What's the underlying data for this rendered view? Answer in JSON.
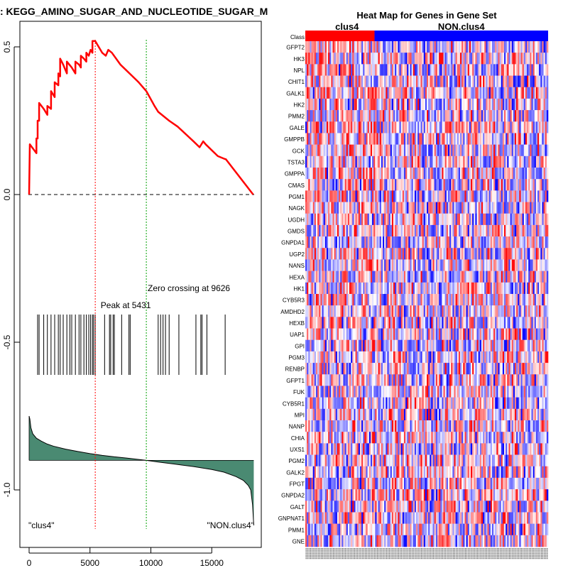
{
  "chart_data": [
    {
      "type": "line",
      "title": "Enrichment plot: KEGG_AMINO_SUGAR_AND_NUCLEOTIDE_SUGAR_METABOLISM",
      "title_visible": ": KEGG_AMINO_SUGAR_AND_NUCLEOTIDE_SUGAR_M",
      "xlabel": "",
      "ylabel": "",
      "xlim": [
        0,
        18500
      ],
      "ylim": [
        -1.15,
        0.6
      ],
      "x_ticks": [
        0,
        5000,
        10000,
        15000
      ],
      "x_tick_labels": [
        "0",
        "5000",
        "10000",
        "15000"
      ],
      "y_ticks": [
        0.5,
        0.0,
        -0.5,
        -1.0
      ],
      "y_tick_labels": [
        "0.5",
        "0.0",
        "-0.5",
        "-1.0"
      ],
      "peak": {
        "x": 5431,
        "label": "Peak at 5431"
      },
      "zero_crossing": {
        "x": 9626,
        "label": "Zero crossing at 9626"
      },
      "left_class_label": "\"clus4\"",
      "right_class_label": "\"NON.clus4\"",
      "running_es": {
        "x": [
          0,
          60,
          60,
          600,
          600,
          700,
          700,
          820,
          820,
          1200,
          1500,
          1500,
          1800,
          1800,
          2100,
          2100,
          2400,
          2400,
          2550,
          2550,
          2800,
          3100,
          3100,
          3500,
          3800,
          3800,
          4100,
          4250,
          4250,
          4500,
          4700,
          4700,
          4900,
          5050,
          5200,
          5200,
          5431,
          6000,
          6300,
          6500,
          6800,
          7500,
          8000,
          8500,
          9000,
          9626,
          10300,
          10600,
          11500,
          12200,
          13500,
          14000,
          14300,
          14500,
          15500,
          16100,
          16150,
          18400
        ],
        "y": [
          0.0,
          0.17,
          0.17,
          0.14,
          0.19,
          0.19,
          0.25,
          0.25,
          0.31,
          0.29,
          0.27,
          0.3,
          0.29,
          0.35,
          0.33,
          0.38,
          0.37,
          0.41,
          0.4,
          0.46,
          0.44,
          0.41,
          0.45,
          0.43,
          0.41,
          0.45,
          0.44,
          0.43,
          0.47,
          0.46,
          0.45,
          0.48,
          0.47,
          0.49,
          0.48,
          0.52,
          0.52,
          0.48,
          0.47,
          0.49,
          0.48,
          0.44,
          0.42,
          0.4,
          0.38,
          0.35,
          0.3,
          0.28,
          0.25,
          0.23,
          0.18,
          0.16,
          0.18,
          0.17,
          0.13,
          0.12,
          0.12,
          0.0
        ]
      },
      "hit_positions": [
        700,
        820,
        1200,
        1500,
        1800,
        2100,
        2400,
        2550,
        2800,
        3100,
        3350,
        3500,
        3800,
        4100,
        4250,
        4500,
        4700,
        4900,
        5050,
        5200,
        5300,
        5431,
        6200,
        6600,
        6700,
        6900,
        7000,
        7600,
        8200,
        8300,
        10600,
        10800,
        11000,
        11200,
        11500,
        12300,
        13700,
        14100,
        14200,
        14600,
        16100
      ],
      "ranked_metric": {
        "x": [
          0,
          60,
          150,
          300,
          600,
          1000,
          1500,
          2000,
          3000,
          4000,
          5000,
          6000,
          7000,
          8000,
          9000,
          9626,
          10500,
          12000,
          13500,
          15000,
          16000,
          17000,
          17600,
          18000,
          18200,
          18350,
          18450
        ],
        "y": [
          -0.75,
          -0.76,
          -0.79,
          -0.81,
          -0.825,
          -0.835,
          -0.845,
          -0.852,
          -0.862,
          -0.87,
          -0.877,
          -0.883,
          -0.888,
          -0.892,
          -0.897,
          -0.9,
          -0.905,
          -0.913,
          -0.921,
          -0.931,
          -0.94,
          -0.955,
          -0.968,
          -0.985,
          -1.0,
          -1.05,
          -1.12
        ]
      },
      "metric_baseline": -0.9
    },
    {
      "type": "heatmap",
      "title": "Heat Map for Genes in Gene Set",
      "class_row_label": "Class",
      "groups": [
        {
          "name": "clus4",
          "fraction": 0.285,
          "color": "#ff0000"
        },
        {
          "name": "NON.clus4",
          "fraction": 0.715,
          "color": "#0000ff"
        }
      ],
      "genes": [
        "GFPT2",
        "HK3",
        "NPL",
        "CHIT1",
        "GALK1",
        "HK2",
        "PMM2",
        "GALE",
        "GMPPB",
        "GCK",
        "TSTA3",
        "GMPPA",
        "CMAS",
        "PGM1",
        "NAGK",
        "UGDH",
        "GMDS",
        "GNPDA1",
        "UGP2",
        "NANS",
        "HEXA",
        "HK1",
        "CYB5R3",
        "AMDHD2",
        "HEXB",
        "UAP1",
        "GPI",
        "PGM3",
        "RENBP",
        "GFPT1",
        "FUK",
        "CYB5R1",
        "MPI",
        "NANP",
        "CHIA",
        "UXS1",
        "PGM2",
        "GALK2",
        "FPGT",
        "GNPDA2",
        "GALT",
        "GNPNAT1",
        "PMM1",
        "GNE"
      ],
      "n_samples": 160,
      "colors": {
        "high": "#ff0000",
        "mid": "#ffffff",
        "low": "#0000ff"
      }
    }
  ],
  "colors": {
    "es_line": "#ff0000",
    "peak_line": "#ff0000",
    "zero_line": "#00a000",
    "metric_fill": "#4a8a72",
    "hits": "#000000"
  }
}
